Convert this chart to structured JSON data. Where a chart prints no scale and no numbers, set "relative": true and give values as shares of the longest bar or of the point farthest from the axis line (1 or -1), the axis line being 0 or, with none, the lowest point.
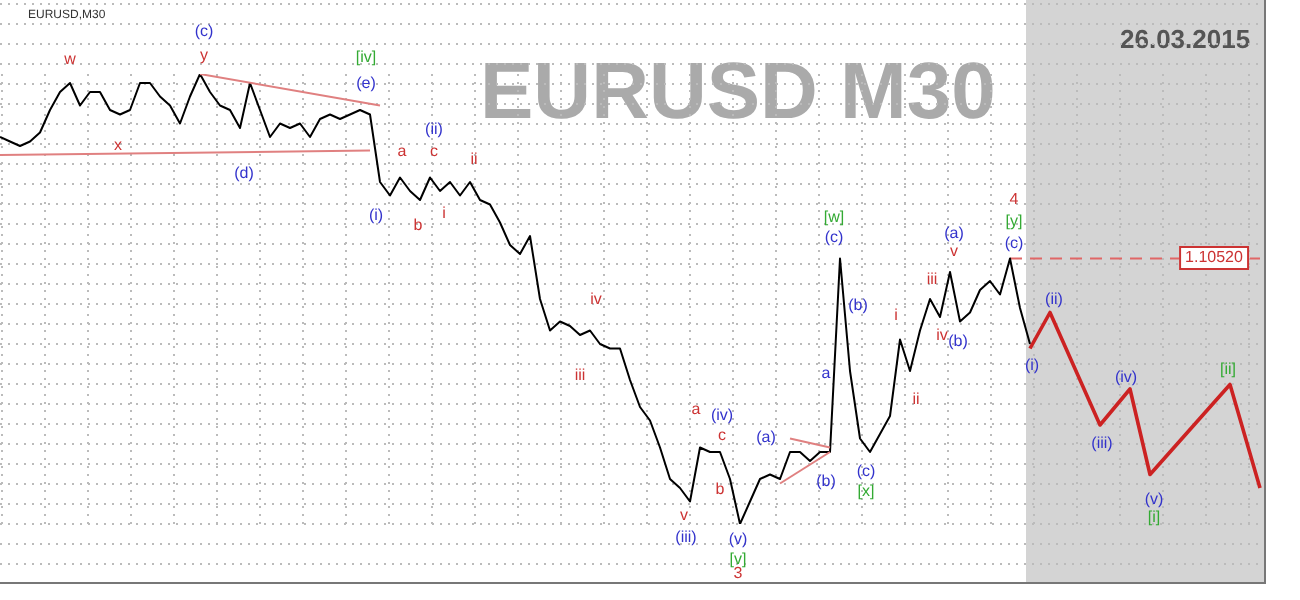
{
  "chart_data": {
    "type": "line",
    "title": "EURUSD M30",
    "subtitle": "26.03.2015",
    "relative": true,
    "grid": true,
    "categories": [
      null,
      null,
      null,
      null,
      null,
      null,
      null,
      null,
      null,
      null,
      null,
      null,
      null,
      null,
      null,
      null,
      null,
      null,
      null,
      null,
      null,
      null,
      null,
      null,
      null,
      null,
      null,
      null,
      null,
      null,
      null,
      null,
      null,
      null,
      null,
      null,
      null,
      null,
      null,
      null,
      null,
      null,
      null,
      null,
      null,
      null,
      null,
      null,
      null,
      null,
      null,
      null,
      null,
      null,
      null,
      null,
      null,
      null,
      null,
      null,
      null,
      null,
      null,
      null,
      null,
      null,
      null,
      null,
      null,
      null,
      null,
      null,
      null,
      null,
      null,
      null,
      null,
      null,
      null,
      null,
      null,
      null,
      null,
      null,
      null,
      null,
      null,
      null,
      null,
      null,
      null,
      null,
      null,
      null,
      null,
      null,
      null,
      null,
      null,
      null,
      null,
      null,
      null,
      null,
      null,
      null,
      null,
      null,
      null,
      null,
      null,
      null,
      null,
      null,
      null,
      null,
      null,
      null,
      null,
      null,
      null,
      null,
      null,
      null,
      null,
      null,
      null
    ],
    "series": [
      {
        "color": "#000000",
        "values": [
          0.86,
          0.85,
          0.84,
          0.85,
          0.87,
          0.92,
          0.96,
          0.98,
          0.93,
          0.96,
          0.96,
          0.92,
          0.91,
          0.92,
          0.98,
          0.98,
          0.95,
          0.93,
          0.89,
          0.95,
          1.0,
          0.96,
          0.93,
          0.92,
          0.88,
          0.98,
          0.92,
          0.86,
          0.89,
          0.88,
          0.89,
          0.86,
          0.9,
          0.91,
          0.9,
          0.91,
          0.92,
          0.91,
          0.76,
          0.73,
          0.77,
          0.74,
          0.72,
          0.77,
          0.74,
          0.76,
          0.73,
          0.76,
          0.72,
          0.71,
          0.67,
          0.62,
          0.6,
          0.64,
          0.5,
          0.43,
          0.45,
          0.44,
          0.42,
          0.43,
          0.4,
          0.39,
          0.39,
          0.32,
          0.26,
          0.23,
          0.17,
          0.1,
          0.08,
          0.05,
          0.17,
          0.16,
          0.16,
          0.1,
          0.0,
          0.05,
          0.1,
          0.11,
          0.1,
          0.16,
          0.16,
          0.14,
          0.16,
          0.16,
          0.59,
          0.34,
          0.19,
          0.16,
          0.2,
          0.24,
          0.41,
          0.34,
          0.43,
          0.5,
          0.46,
          0.56,
          0.45,
          0.47,
          0.52,
          0.54,
          0.51,
          0.59,
          0.48,
          0.4,
          null,
          null,
          null,
          null,
          null,
          null,
          null,
          null,
          null,
          null,
          null,
          null,
          null,
          null,
          null,
          null,
          null,
          null,
          null,
          null,
          null,
          null,
          null
        ]
      },
      {
        "type": "line",
        "color": "#e08080",
        "values": [
          null,
          null,
          null,
          null,
          null,
          null,
          null,
          null,
          null,
          null,
          null,
          null,
          null,
          null,
          null,
          null,
          null,
          null,
          null,
          null,
          1.0,
          null,
          null,
          null,
          null,
          null,
          null,
          null,
          null,
          null,
          null,
          null,
          null,
          null,
          null,
          null,
          null,
          null,
          0.93,
          null,
          null,
          null,
          null,
          null,
          null,
          null,
          null,
          null,
          null,
          null,
          null,
          null,
          null,
          null,
          null,
          null,
          null,
          null,
          null,
          null,
          null,
          null,
          null,
          null,
          null,
          null,
          null,
          null,
          null,
          null,
          null,
          null,
          null,
          null,
          null,
          null,
          null,
          null,
          null,
          null,
          null,
          null,
          null,
          null,
          null,
          null,
          null,
          null,
          null,
          null,
          null,
          null,
          null,
          null,
          null,
          null,
          null,
          null,
          null,
          null,
          null,
          null,
          null,
          null,
          null,
          null,
          null,
          null,
          null,
          null,
          null,
          null,
          null,
          null,
          null,
          null,
          null,
          null,
          null,
          null,
          null,
          null,
          null,
          null,
          null,
          null,
          null
        ]
      },
      {
        "type": "line",
        "color": "#e08080",
        "values": [
          0.82,
          null,
          null,
          null,
          null,
          null,
          null,
          null,
          null,
          null,
          null,
          null,
          null,
          null,
          null,
          null,
          null,
          null,
          null,
          null,
          null,
          null,
          null,
          null,
          null,
          null,
          null,
          null,
          null,
          null,
          null,
          null,
          null,
          null,
          null,
          null,
          null,
          0.83,
          null,
          null,
          null,
          null,
          null,
          null,
          null,
          null,
          null,
          null,
          null,
          null,
          null,
          null,
          null,
          null,
          null,
          null,
          null,
          null,
          null,
          null,
          null,
          null,
          null,
          null,
          null,
          null,
          null,
          null,
          null,
          null,
          null,
          null,
          null,
          null,
          null,
          null,
          null,
          null,
          null,
          null,
          null,
          null,
          null,
          null,
          null,
          null,
          null,
          null,
          null,
          null,
          null,
          null,
          null,
          null,
          null,
          null,
          null,
          null,
          null,
          null,
          null,
          null,
          null,
          null,
          null,
          null,
          null,
          null,
          null,
          null,
          null,
          null,
          null,
          null,
          null,
          null,
          null,
          null,
          null,
          null,
          null,
          null,
          null,
          null,
          null,
          null,
          null
        ]
      },
      {
        "type": "line",
        "color": "#e08080",
        "values": [
          null,
          null,
          null,
          null,
          null,
          null,
          null,
          null,
          null,
          null,
          null,
          null,
          null,
          null,
          null,
          null,
          null,
          null,
          null,
          null,
          null,
          null,
          null,
          null,
          null,
          null,
          null,
          null,
          null,
          null,
          null,
          null,
          null,
          null,
          null,
          null,
          null,
          null,
          null,
          null,
          null,
          null,
          null,
          null,
          null,
          null,
          null,
          null,
          null,
          null,
          null,
          null,
          null,
          null,
          null,
          null,
          null,
          null,
          null,
          null,
          null,
          null,
          null,
          null,
          null,
          null,
          null,
          null,
          null,
          null,
          null,
          null,
          null,
          null,
          null,
          null,
          null,
          null,
          null,
          0.19,
          null,
          null,
          null,
          0.17,
          null,
          null,
          null,
          null,
          null,
          null,
          null,
          null,
          null,
          null,
          null,
          null,
          null,
          null,
          null,
          null,
          null,
          null,
          null,
          null,
          null,
          null,
          null,
          null,
          null,
          null,
          null,
          null,
          null,
          null,
          null,
          null,
          null,
          null,
          null,
          null,
          null,
          null,
          null,
          null,
          null,
          null,
          null
        ]
      },
      {
        "type": "line",
        "color": "#e08080",
        "values": [
          null,
          null,
          null,
          null,
          null,
          null,
          null,
          null,
          null,
          null,
          null,
          null,
          null,
          null,
          null,
          null,
          null,
          null,
          null,
          null,
          null,
          null,
          null,
          null,
          null,
          null,
          null,
          null,
          null,
          null,
          null,
          null,
          null,
          null,
          null,
          null,
          null,
          null,
          null,
          null,
          null,
          null,
          null,
          null,
          null,
          null,
          null,
          null,
          null,
          null,
          null,
          null,
          null,
          null,
          null,
          null,
          null,
          null,
          null,
          null,
          null,
          null,
          null,
          null,
          null,
          null,
          null,
          null,
          null,
          null,
          null,
          null,
          null,
          null,
          null,
          null,
          null,
          null,
          0.09,
          null,
          null,
          null,
          null,
          0.16,
          null,
          null,
          null,
          null,
          null,
          null,
          null,
          null,
          null,
          null,
          null,
          null,
          null,
          null,
          null,
          null,
          null,
          null,
          null,
          null,
          null,
          null,
          null,
          null,
          null,
          null,
          null,
          null,
          null,
          null,
          null,
          null,
          null,
          null,
          null,
          null,
          null,
          null,
          null,
          null,
          null,
          null,
          null
        ]
      },
      {
        "color": "#cc2222",
        "values": [
          null,
          null,
          null,
          null,
          null,
          null,
          null,
          null,
          null,
          null,
          null,
          null,
          null,
          null,
          null,
          null,
          null,
          null,
          null,
          null,
          null,
          null,
          null,
          null,
          null,
          null,
          null,
          null,
          null,
          null,
          null,
          null,
          null,
          null,
          null,
          null,
          null,
          null,
          null,
          null,
          null,
          null,
          null,
          null,
          null,
          null,
          null,
          null,
          null,
          null,
          null,
          null,
          null,
          null,
          null,
          null,
          null,
          null,
          null,
          null,
          null,
          null,
          null,
          null,
          null,
          null,
          null,
          null,
          null,
          null,
          null,
          null,
          null,
          null,
          null,
          null,
          null,
          null,
          null,
          null,
          null,
          null,
          null,
          null,
          null,
          null,
          null,
          null,
          null,
          null,
          null,
          null,
          null,
          null,
          null,
          null,
          null,
          null,
          null,
          null,
          null,
          null,
          null,
          0.39,
          null,
          0.47,
          null,
          null,
          null,
          null,
          0.22,
          null,
          null,
          0.3,
          null,
          0.11,
          null,
          null,
          null,
          null,
          null,
          null,
          null,
          0.31,
          null,
          null,
          0.08
        ]
      }
    ],
    "ref_lines": [
      {
        "axis": "y",
        "value": 0.59,
        "color": "#e06666",
        "line_style": "dashed"
      }
    ],
    "annotations": [
      "1.10520",
      "EURUSD,M30",
      "w",
      "(c)",
      "y",
      "x",
      "(d)",
      "[iv]",
      "(e)",
      "(i)",
      "a",
      "(ii)",
      "c",
      "b",
      "i",
      "ii",
      "iv",
      "iii",
      "a",
      "(iv)",
      "c",
      "b",
      "v",
      "(iii)",
      "(v)",
      "[v]",
      "3",
      "(a)",
      "(b)",
      "[w]",
      "(c)",
      "(b)",
      "a",
      "(c)",
      "[x]",
      "i",
      "ii",
      "iii",
      "iv",
      "(a)",
      "v",
      "(b)",
      "4",
      "[y]",
      "(c)",
      "(ii)",
      "(i)",
      "(iii)",
      "(iv)",
      "(v)",
      "[i]",
      "[ii]"
    ]
  }
}
